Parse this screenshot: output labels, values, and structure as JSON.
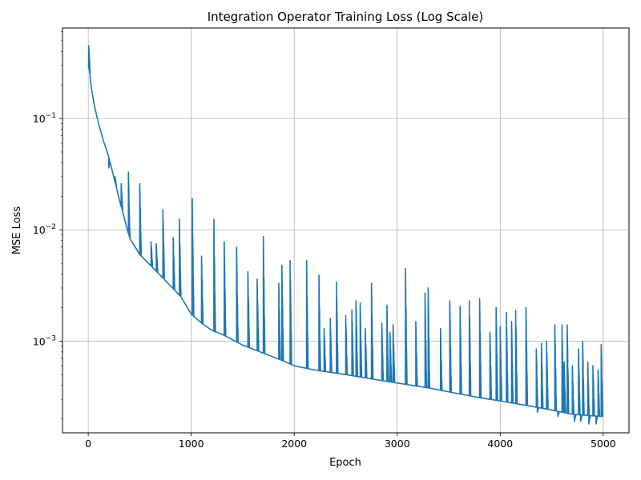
{
  "chart_data": {
    "type": "line",
    "title": "Integration Operator Training Loss (Log Scale)",
    "xlabel": "Epoch",
    "ylabel": "MSE Loss",
    "xlim": [
      -250,
      5250
    ],
    "ylim": [
      0.00015,
      0.65
    ],
    "yscale": "log",
    "grid": true,
    "x_ticks": [
      0,
      1000,
      2000,
      3000,
      4000,
      5000
    ],
    "x_tick_labels": [
      "0",
      "1000",
      "2000",
      "3000",
      "4000",
      "5000"
    ],
    "y_ticks": [
      0.1,
      0.01,
      0.001
    ],
    "y_tick_labels": [
      {
        "base": "10",
        "exp": "−1"
      },
      {
        "base": "10",
        "exp": "−2"
      },
      {
        "base": "10",
        "exp": "−3"
      }
    ],
    "line_color": "#1f77b4",
    "series": [
      {
        "baseline": {
          "x": [
            0,
            10,
            30,
            60,
            100,
            150,
            200,
            300,
            400,
            500,
            700,
            900,
            1000,
            1100,
            1200,
            1300,
            1500,
            1700,
            1900,
            2000,
            2200,
            2500,
            2800,
            3000,
            3300,
            3500,
            3800,
            4000,
            4300,
            4500,
            4700,
            5000
          ],
          "y": [
            0.3,
            0.27,
            0.19,
            0.13,
            0.09,
            0.062,
            0.045,
            0.019,
            0.0085,
            0.006,
            0.0039,
            0.0025,
            0.00175,
            0.00145,
            0.00125,
            0.00115,
            0.00092,
            0.00078,
            0.00066,
            0.0006,
            0.00055,
            0.0005,
            0.00045,
            0.00042,
            0.00038,
            0.00035,
            0.00031,
            0.00029,
            0.00026,
            0.00024,
            0.00022,
            0.00021
          ]
        },
        "spikes": {
          "x": [
            5,
            200,
            260,
            320,
            390,
            500,
            610,
            660,
            725,
            825,
            885,
            1010,
            1100,
            1220,
            1320,
            1440,
            1550,
            1640,
            1700,
            1850,
            1880,
            1960,
            2120,
            2240,
            2290,
            2350,
            2410,
            2500,
            2560,
            2600,
            2640,
            2690,
            2750,
            2850,
            2900,
            2930,
            2960,
            3080,
            3180,
            3270,
            3300,
            3420,
            3510,
            3610,
            3700,
            3800,
            3900,
            3960,
            4000,
            4060,
            4110,
            4150,
            4250,
            4350,
            4400,
            4450,
            4530,
            4600,
            4620,
            4650,
            4700,
            4760,
            4800,
            4850,
            4900,
            4950,
            4980
          ],
          "y": [
            0.45,
            0.036,
            0.03,
            0.026,
            0.033,
            0.026,
            0.0078,
            0.0075,
            0.0152,
            0.0085,
            0.0125,
            0.019,
            0.0058,
            0.0125,
            0.0078,
            0.007,
            0.0042,
            0.0036,
            0.0087,
            0.0033,
            0.0048,
            0.0053,
            0.0053,
            0.0039,
            0.0013,
            0.0016,
            0.0034,
            0.0017,
            0.0019,
            0.0023,
            0.0022,
            0.0013,
            0.0033,
            0.00145,
            0.0021,
            0.0012,
            0.0014,
            0.0045,
            0.0015,
            0.0027,
            0.003,
            0.0013,
            0.0023,
            0.00205,
            0.0023,
            0.0024,
            0.0012,
            0.002,
            0.00135,
            0.0018,
            0.0015,
            0.0019,
            0.002,
            0.00085,
            0.00095,
            0.001,
            0.0014,
            0.0014,
            0.00065,
            0.0014,
            0.0006,
            0.00085,
            0.001,
            0.00065,
            0.0006,
            0.00055,
            0.00093
          ]
        },
        "dips": {
          "x": [
            4360,
            4560,
            4720,
            4780,
            4860,
            4930
          ],
          "y": [
            0.00023,
            0.00021,
            0.00019,
            0.00019,
            0.00018,
            0.00018
          ]
        }
      }
    ]
  }
}
